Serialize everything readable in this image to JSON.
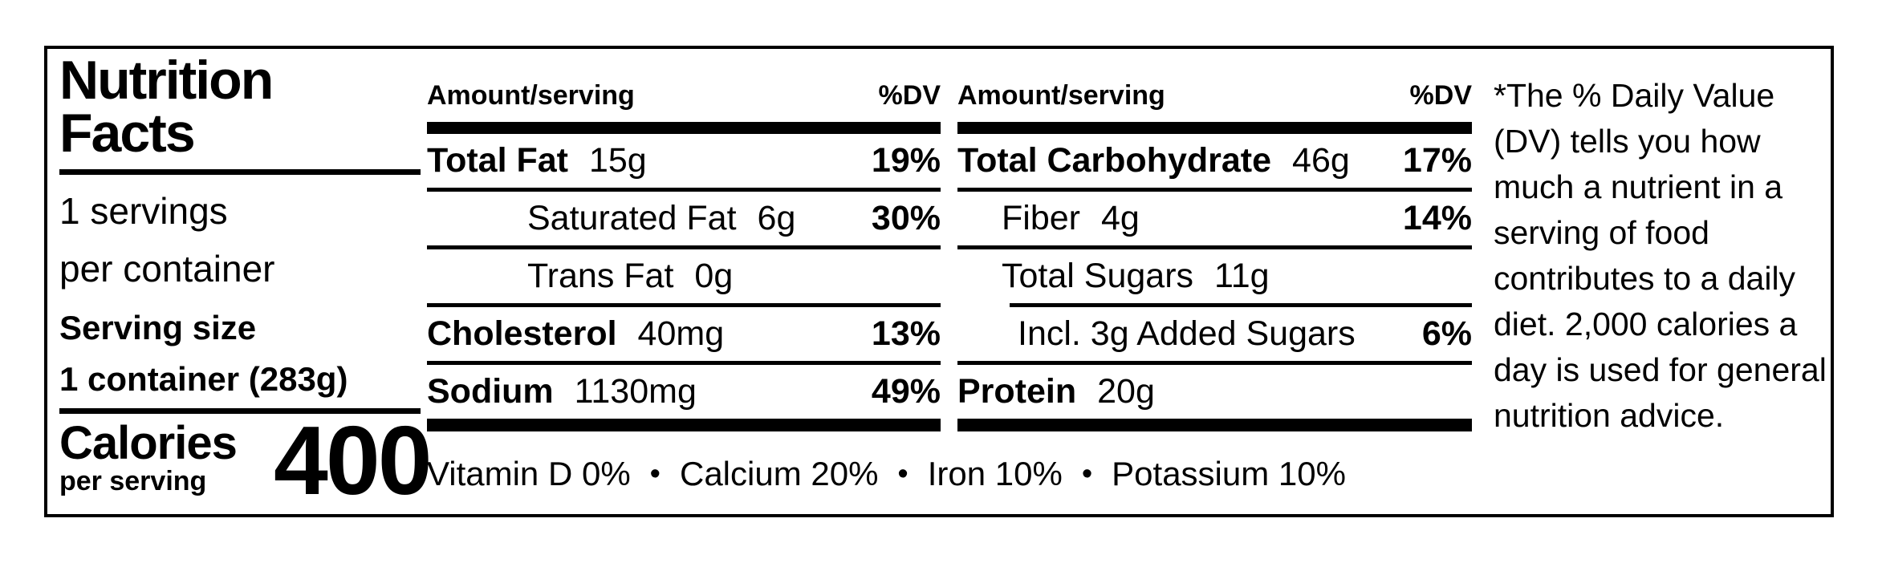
{
  "label": {
    "title_line1": "Nutrition",
    "title_line2": "Facts",
    "servings_count": "1 servings",
    "servings_per": "per container",
    "serving_size_label": "Serving size",
    "serving_size_value": "1 container (283g)",
    "calories_label": "Calories",
    "calories_sublabel": "per serving",
    "calories_value": "400"
  },
  "columns": [
    {
      "header_amount": "Amount/serving",
      "header_dv": "%DV",
      "rows": [
        {
          "name": "Total Fat",
          "amount": "15g",
          "dv": "19%"
        },
        {
          "name": "Saturated Fat",
          "amount": "6g",
          "dv": "30%"
        },
        {
          "name": "Trans Fat",
          "amount": "0g",
          "dv": ""
        },
        {
          "name": "Cholesterol",
          "amount": "40mg",
          "dv": "13%"
        },
        {
          "name": "Sodium",
          "amount": "1130mg",
          "dv": "49%"
        }
      ]
    },
    {
      "header_amount": "Amount/serving",
      "header_dv": "%DV",
      "rows": [
        {
          "name": "Total Carbohydrate",
          "amount": "46g",
          "dv": "17%"
        },
        {
          "name": "Fiber",
          "amount": "4g",
          "dv": "14%"
        },
        {
          "name": "Total Sugars",
          "amount": "11g",
          "dv": ""
        },
        {
          "name": "Incl. 3g Added Sugars",
          "amount": "",
          "dv": "6%"
        },
        {
          "name": "Protein",
          "amount": "20g",
          "dv": ""
        }
      ]
    }
  ],
  "micronutrients": {
    "bullet": "•",
    "items": [
      "Vitamin D 0%",
      "Calcium 20%",
      "Iron 10%",
      "Potassium 10%"
    ]
  },
  "footnote": "*The % Daily Value (DV) tells you how much a nutrient in a serving of food contributes to a daily diet. 2,000 calories a day is used for general nutrition advice.",
  "colors": {
    "ink": "#000000",
    "background": "#ffffff"
  }
}
